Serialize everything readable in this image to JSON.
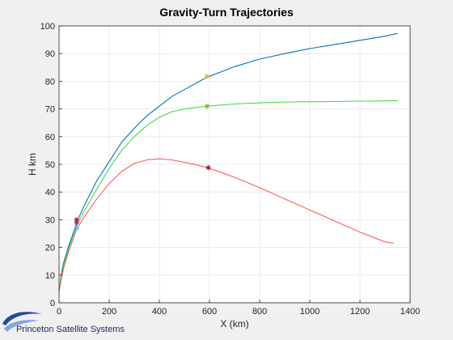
{
  "logo": {
    "text": "Princeton Satellite Systems"
  },
  "chart_data": {
    "type": "line",
    "title": "Gravity-Turn Trajectories",
    "xlabel": "X (km)",
    "ylabel": "H km",
    "xlim": [
      0,
      1400
    ],
    "ylim": [
      0,
      100
    ],
    "xticks": [
      0,
      200,
      400,
      600,
      800,
      1000,
      1200,
      1400
    ],
    "yticks": [
      0,
      10,
      20,
      30,
      40,
      50,
      60,
      70,
      80,
      90,
      100
    ],
    "grid": true,
    "legend": "none",
    "series": [
      {
        "color": "#0072bd",
        "points": [
          [
            0,
            4
          ],
          [
            10,
            11
          ],
          [
            20,
            15
          ],
          [
            40,
            21
          ],
          [
            60,
            26
          ],
          [
            70,
            29
          ],
          [
            100,
            35
          ],
          [
            150,
            44
          ],
          [
            200,
            51
          ],
          [
            250,
            58
          ],
          [
            300,
            63
          ],
          [
            350,
            67.5
          ],
          [
            400,
            71
          ],
          [
            450,
            74.5
          ],
          [
            500,
            77
          ],
          [
            550,
            79.5
          ],
          [
            590,
            81.5
          ],
          [
            650,
            83.5
          ],
          [
            700,
            85.3
          ],
          [
            800,
            88
          ],
          [
            900,
            90
          ],
          [
            1000,
            91.8
          ],
          [
            1100,
            93.3
          ],
          [
            1200,
            94.8
          ],
          [
            1300,
            96.3
          ],
          [
            1350,
            97.3
          ]
        ],
        "markers": [
          [
            70,
            30,
            "#ff0000"
          ],
          [
            590,
            81.8,
            "#edb120"
          ]
        ]
      },
      {
        "color": "#44dd44",
        "points": [
          [
            0,
            4
          ],
          [
            10,
            10
          ],
          [
            20,
            14
          ],
          [
            40,
            20
          ],
          [
            60,
            25
          ],
          [
            70,
            27.5
          ],
          [
            100,
            33
          ],
          [
            150,
            41
          ],
          [
            200,
            48.5
          ],
          [
            250,
            55
          ],
          [
            300,
            60
          ],
          [
            350,
            64
          ],
          [
            400,
            67
          ],
          [
            450,
            69
          ],
          [
            500,
            70
          ],
          [
            550,
            70.6
          ],
          [
            590,
            71
          ],
          [
            700,
            71.8
          ],
          [
            800,
            72.2
          ],
          [
            900,
            72.5
          ],
          [
            1000,
            72.6
          ],
          [
            1100,
            72.7
          ],
          [
            1200,
            72.8
          ],
          [
            1300,
            72.9
          ],
          [
            1350,
            73
          ]
        ],
        "markers": [
          [
            70,
            29,
            "#7e2f8e"
          ],
          [
            590,
            71,
            "#77ac30"
          ]
        ]
      },
      {
        "color": "#ff5c5c",
        "points": [
          [
            0,
            4
          ],
          [
            10,
            9
          ],
          [
            20,
            13
          ],
          [
            40,
            19
          ],
          [
            60,
            24
          ],
          [
            70,
            26.5
          ],
          [
            100,
            31
          ],
          [
            150,
            37.5
          ],
          [
            200,
            43
          ],
          [
            250,
            47.5
          ],
          [
            300,
            50.3
          ],
          [
            350,
            51.6
          ],
          [
            400,
            52
          ],
          [
            450,
            51.6
          ],
          [
            500,
            50.7
          ],
          [
            550,
            49.8
          ],
          [
            590,
            48.8
          ],
          [
            650,
            47
          ],
          [
            700,
            45.3
          ],
          [
            800,
            41.6
          ],
          [
            900,
            37.5
          ],
          [
            1000,
            33.5
          ],
          [
            1100,
            29.5
          ],
          [
            1200,
            25.5
          ],
          [
            1300,
            22
          ],
          [
            1335,
            21.5
          ]
        ],
        "markers": [
          [
            70,
            27,
            "#4dbeee"
          ],
          [
            595,
            48.8,
            "#a2142f"
          ]
        ]
      }
    ]
  }
}
